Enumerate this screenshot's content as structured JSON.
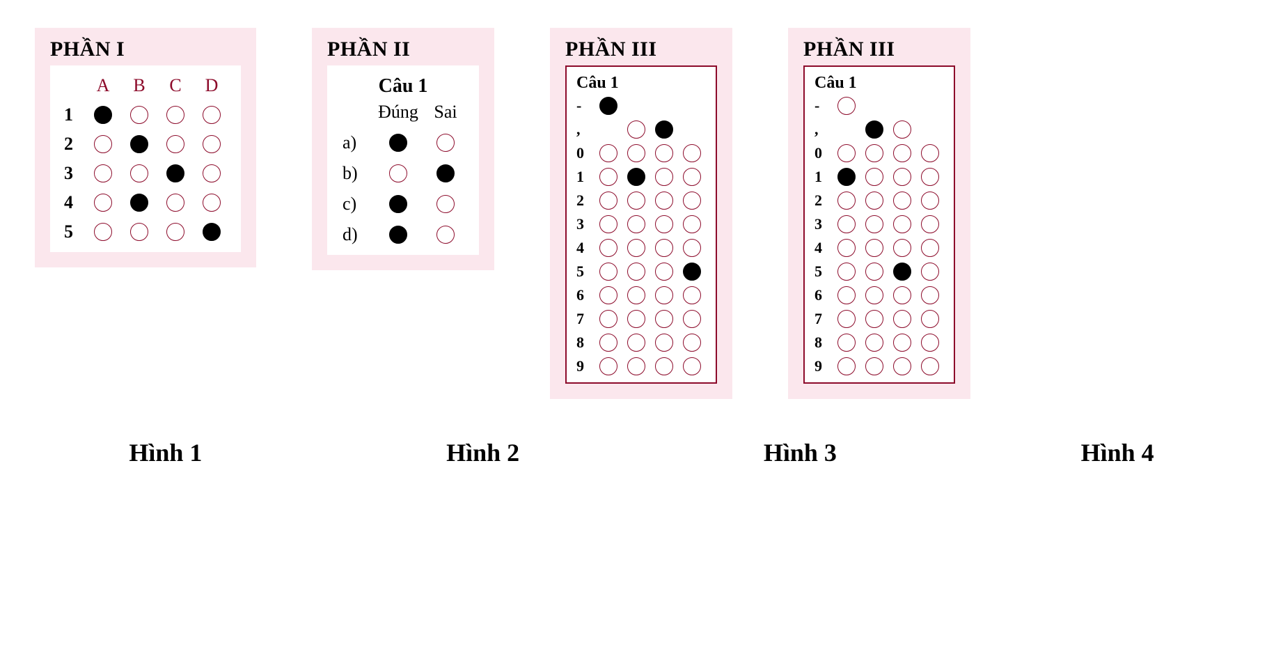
{
  "colors": {
    "pink_bg": "#fbe7ed",
    "bubble_border": "#8c0a2a",
    "bubble_fill": "#000000",
    "header_red": "#8c0a2a",
    "text": "#000000",
    "page_bg": "#ffffff"
  },
  "captions": [
    "Hình 1",
    "Hình 2",
    "Hình 3",
    "Hình 4"
  ],
  "panel1": {
    "section_title": "PHẦN I",
    "columns": [
      "A",
      "B",
      "C",
      "D"
    ],
    "rows": [
      "1",
      "2",
      "3",
      "4",
      "5"
    ],
    "filled": {
      "1": "A",
      "2": "B",
      "3": "C",
      "4": "B",
      "5": "D"
    }
  },
  "panel2": {
    "section_title": "PHẦN II",
    "question_title": "Câu 1",
    "columns": [
      "Đúng",
      "Sai"
    ],
    "rows": [
      "a)",
      "b)",
      "c)",
      "d)"
    ],
    "filled": {
      "a)": "Đúng",
      "b)": "Sai",
      "c)": "Đúng",
      "d)": "Đúng"
    }
  },
  "panel3": {
    "section_title": "PHẦN III",
    "question_title": "Câu 1",
    "row_labels": [
      "-",
      ",",
      "0",
      "1",
      "2",
      "3",
      "4",
      "5",
      "6",
      "7",
      "8",
      "9"
    ],
    "columns": 4,
    "cells": {
      "-": [
        "filled",
        "blank",
        "blank",
        "blank"
      ],
      ",": [
        "blank",
        "empty",
        "filled",
        "blank"
      ],
      "0": [
        "empty",
        "empty",
        "empty",
        "empty"
      ],
      "1": [
        "empty",
        "filled",
        "empty",
        "empty"
      ],
      "2": [
        "empty",
        "empty",
        "empty",
        "empty"
      ],
      "3": [
        "empty",
        "empty",
        "empty",
        "empty"
      ],
      "4": [
        "empty",
        "empty",
        "empty",
        "empty"
      ],
      "5": [
        "empty",
        "empty",
        "empty",
        "filled"
      ],
      "6": [
        "empty",
        "empty",
        "empty",
        "empty"
      ],
      "7": [
        "empty",
        "empty",
        "empty",
        "empty"
      ],
      "8": [
        "empty",
        "empty",
        "empty",
        "empty"
      ],
      "9": [
        "empty",
        "empty",
        "empty",
        "empty"
      ]
    }
  },
  "panel4": {
    "section_title": "PHẦN III",
    "question_title": "Câu 1",
    "row_labels": [
      "-",
      ",",
      "0",
      "1",
      "2",
      "3",
      "4",
      "5",
      "6",
      "7",
      "8",
      "9"
    ],
    "columns": 4,
    "cells": {
      "-": [
        "empty",
        "blank",
        "blank",
        "blank"
      ],
      ",": [
        "blank",
        "filled",
        "empty",
        "blank"
      ],
      "0": [
        "empty",
        "empty",
        "empty",
        "empty"
      ],
      "1": [
        "filled",
        "empty",
        "empty",
        "empty"
      ],
      "2": [
        "empty",
        "empty",
        "empty",
        "empty"
      ],
      "3": [
        "empty",
        "empty",
        "empty",
        "empty"
      ],
      "4": [
        "empty",
        "empty",
        "empty",
        "empty"
      ],
      "5": [
        "empty",
        "empty",
        "filled",
        "empty"
      ],
      "6": [
        "empty",
        "empty",
        "empty",
        "empty"
      ],
      "7": [
        "empty",
        "empty",
        "empty",
        "empty"
      ],
      "8": [
        "empty",
        "empty",
        "empty",
        "empty"
      ],
      "9": [
        "empty",
        "empty",
        "empty",
        "empty"
      ]
    }
  }
}
